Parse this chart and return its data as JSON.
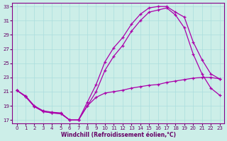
{
  "xlabel": "Windchill (Refroidissement éolien,°C)",
  "bg_color": "#cceee8",
  "grid_color": "#aadddd",
  "line_color": "#aa00aa",
  "xlim": [
    -0.5,
    23.5
  ],
  "ylim": [
    16.5,
    33.5
  ],
  "yticks": [
    17,
    19,
    21,
    23,
    25,
    27,
    29,
    31,
    33
  ],
  "xticks": [
    0,
    1,
    2,
    3,
    4,
    5,
    6,
    7,
    8,
    9,
    10,
    11,
    12,
    13,
    14,
    15,
    16,
    17,
    18,
    19,
    20,
    21,
    22,
    23
  ],
  "line1_x": [
    0,
    1,
    2,
    3,
    4,
    5,
    6,
    7,
    8,
    9,
    10,
    11,
    12,
    13,
    14,
    15,
    16,
    17,
    18,
    19,
    20,
    21,
    22,
    23
  ],
  "line1_y": [
    21.2,
    20.4,
    19.0,
    18.3,
    18.1,
    18.0,
    17.0,
    17.0,
    19.5,
    22.0,
    25.2,
    27.2,
    28.6,
    30.5,
    31.9,
    32.8,
    33.0,
    33.0,
    32.2,
    31.5,
    28.0,
    25.5,
    23.5,
    22.8
  ],
  "line2_x": [
    0,
    1,
    2,
    3,
    4,
    5,
    6,
    7,
    8,
    9,
    10,
    11,
    12,
    13,
    14,
    15,
    16,
    17,
    18,
    19,
    20,
    21,
    22,
    23
  ],
  "line2_y": [
    21.2,
    20.3,
    18.9,
    18.2,
    18.0,
    17.9,
    17.0,
    17.0,
    19.0,
    21.0,
    24.0,
    26.0,
    27.5,
    29.5,
    31.0,
    32.2,
    32.5,
    32.8,
    31.8,
    30.0,
    26.3,
    23.5,
    21.5,
    20.5
  ],
  "line3_x": [
    0,
    1,
    2,
    3,
    4,
    5,
    6,
    7,
    8,
    9,
    10,
    11,
    12,
    13,
    14,
    15,
    16,
    17,
    18,
    19,
    20,
    21,
    22,
    23
  ],
  "line3_y": [
    21.2,
    20.3,
    18.9,
    18.2,
    18.0,
    17.9,
    17.0,
    17.0,
    19.0,
    20.2,
    20.8,
    21.0,
    21.2,
    21.5,
    21.7,
    21.9,
    22.0,
    22.3,
    22.5,
    22.7,
    22.9,
    23.0,
    23.0,
    22.8
  ]
}
